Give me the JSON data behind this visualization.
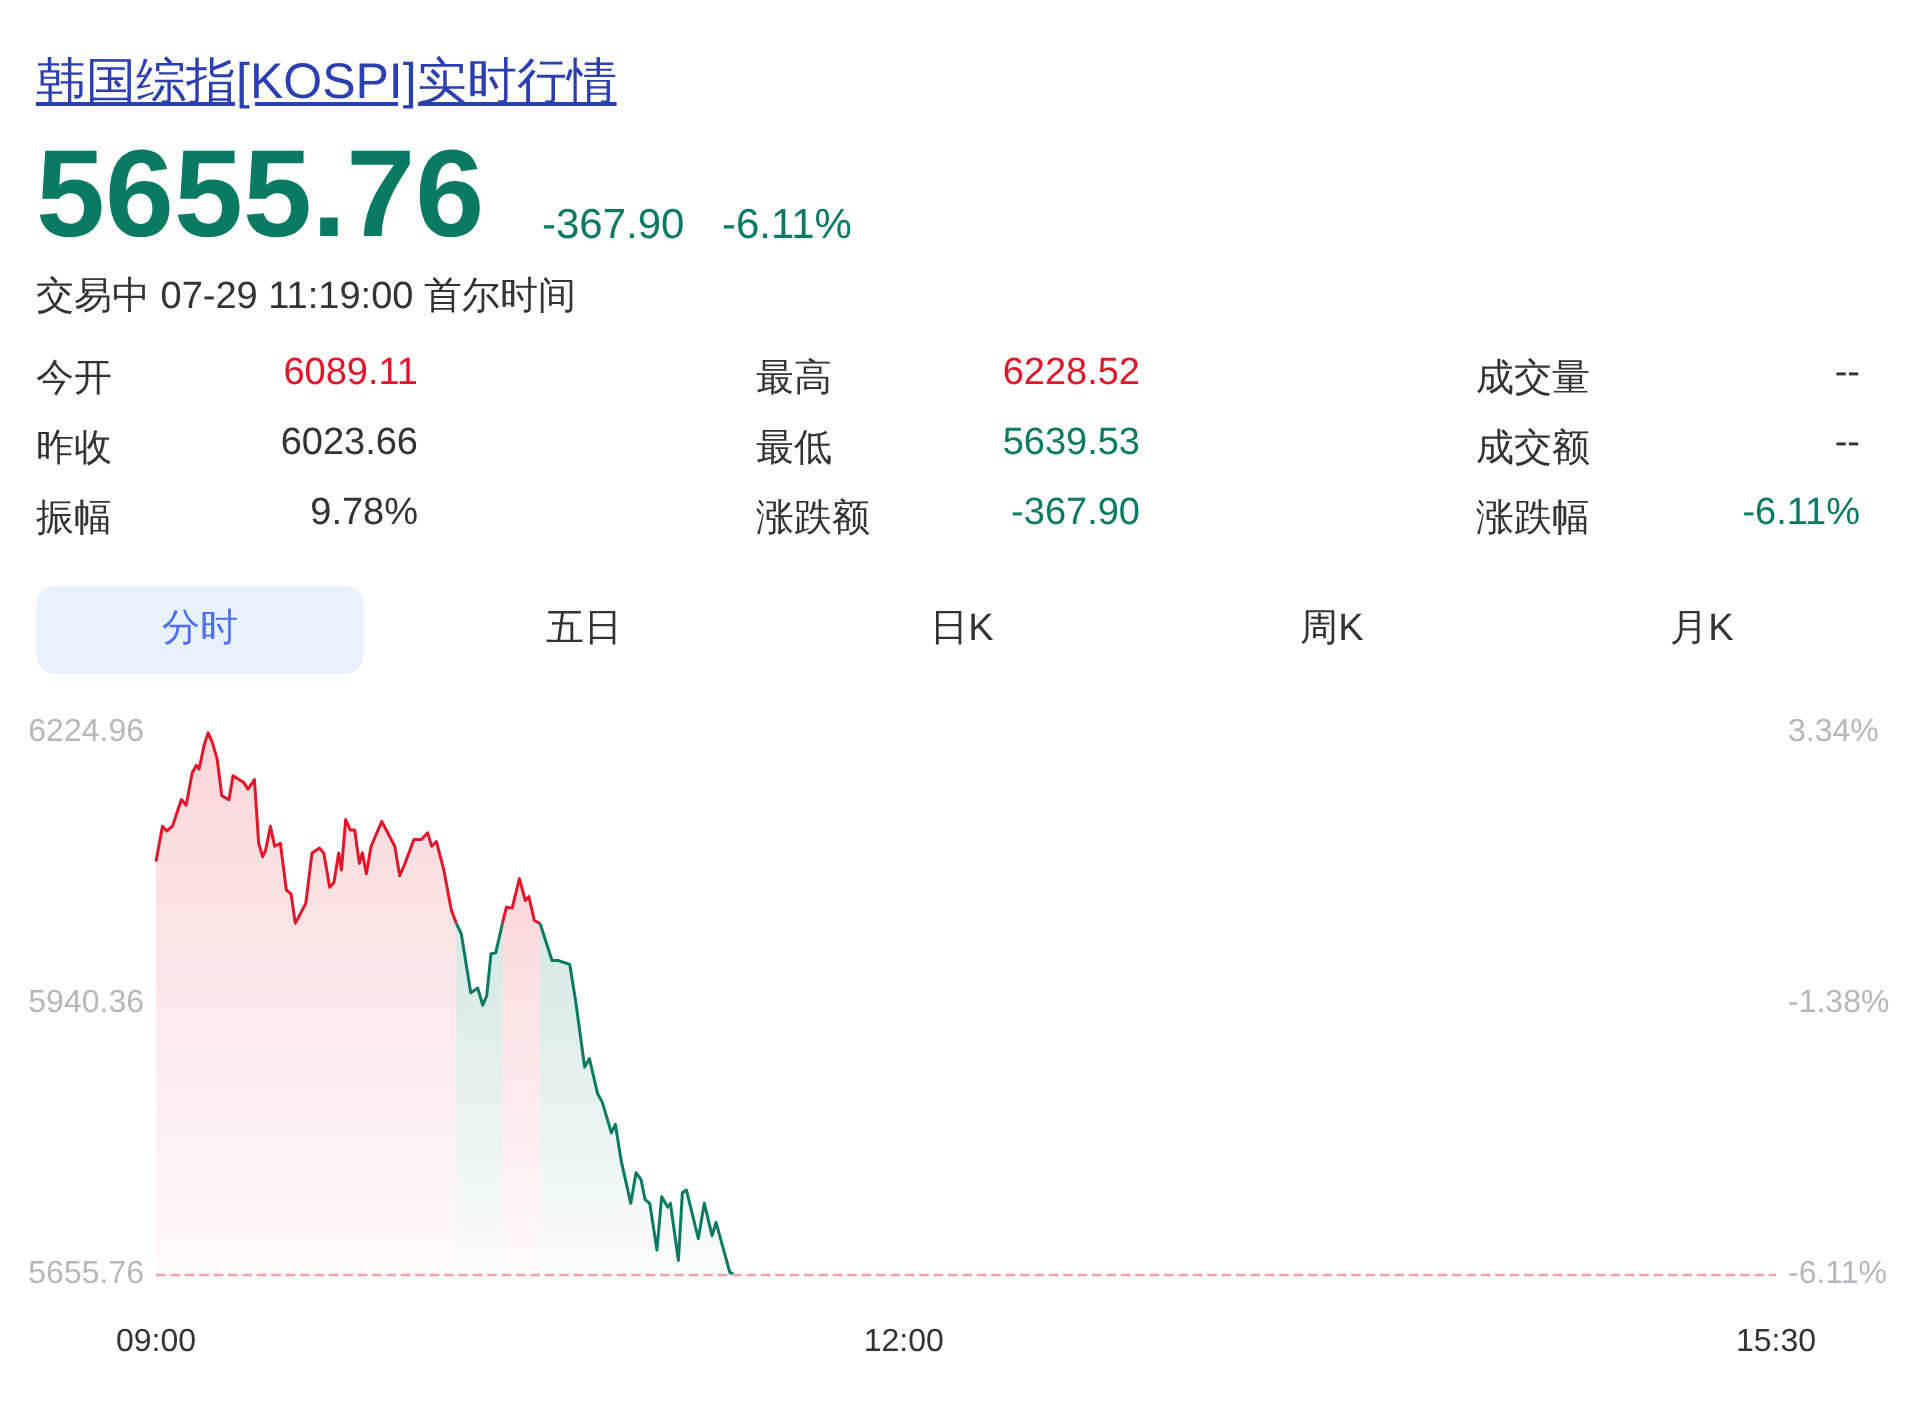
{
  "chart_data": [
    {
      "type": "other",
      "title": "韩国综指[KOSPI]实时行情",
      "annotations": [
        "5655.76",
        "-367.90",
        "-6.11%",
        "交易中 07-29 11:19:00 首尔时间",
        "今开",
        "6089.11",
        "最高",
        "6228.52",
        "成交量",
        "--",
        "昨收",
        "6023.66",
        "最低",
        "5639.53",
        "成交额",
        "--",
        "振幅",
        "9.78%",
        "涨跌额",
        "-367.90",
        "涨跌幅",
        "-6.11%",
        "分时",
        "五日",
        "日K",
        "周K",
        "月K"
      ]
    },
    {
      "type": "area",
      "grid": false,
      "marker": "none",
      "line_style": "solid",
      "xlim": [
        9,
        15.5
      ],
      "xticks": [
        {
          "value": 9,
          "label": "09:00"
        },
        {
          "value": 12,
          "label": "12:00"
        },
        {
          "value": 15.5,
          "label": "15:30"
        }
      ],
      "ylim": [
        5655.76,
        6224.96
      ],
      "yticks": [
        6224.96,
        5940.36,
        5655.76
      ],
      "y2lim": [
        -6.11,
        3.34
      ],
      "y2ticks": [
        {
          "value": 3.34,
          "label": "3.34%"
        },
        {
          "value": -1.38,
          "label": "-1.38%"
        },
        {
          "value": -6.11,
          "label": "-6.11%"
        }
      ],
      "ref_lines": [
        {
          "axis": "y",
          "value": 5655.76,
          "color": "#f2a3a3",
          "line_style": "dashed"
        }
      ],
      "series": [
        {
          "color": "#e1162b",
          "x": [
            9.0,
            9.026,
            9.043,
            9.066,
            9.102,
            9.121,
            9.145,
            9.162,
            9.173,
            9.193,
            9.209,
            9.226,
            9.245,
            9.264,
            9.293,
            9.309,
            9.352,
            9.369,
            9.395,
            9.412,
            9.428,
            9.44,
            9.459,
            9.476,
            9.499,
            9.523,
            9.542,
            9.559,
            9.601,
            9.626,
            9.656,
            9.673,
            9.697,
            9.714,
            9.733,
            9.744,
            9.761,
            9.78,
            9.797,
            9.816,
            9.828,
            9.844,
            9.863,
            9.906,
            9.958,
            9.978,
            9.999,
            10.035,
            10.065,
            10.09,
            10.106,
            10.125,
            10.154,
            10.185,
            10.205
          ],
          "values": [
            6089,
            6126,
            6121,
            6126,
            6154,
            6148,
            6182,
            6190,
            6186,
            6211,
            6224,
            6214,
            6197,
            6158,
            6154,
            6179,
            6172,
            6165,
            6175,
            6108,
            6094,
            6101,
            6126,
            6105,
            6108,
            6059,
            6055,
            6024,
            6045,
            6098,
            6103,
            6098,
            6062,
            6067,
            6098,
            6080,
            6133,
            6122,
            6122,
            6087,
            6098,
            6076,
            6105,
            6131,
            6105,
            6074,
            6087,
            6112,
            6112,
            6119,
            6105,
            6110,
            6081,
            6038,
            6024
          ]
        },
        {
          "color": "#0a7a62",
          "x": [
            10.205,
            10.225,
            10.263,
            10.291,
            10.311,
            10.327,
            10.344,
            10.363,
            10.39
          ],
          "values": [
            6024,
            6013,
            5951,
            5956,
            5938,
            5948,
            5992,
            5993,
            6024
          ]
        },
        {
          "color": "#e1162b",
          "x": [
            10.39,
            10.406,
            10.429,
            10.458,
            10.482,
            10.496,
            10.518,
            10.541
          ],
          "values": [
            6024,
            6041,
            6040,
            6071,
            6048,
            6052,
            6027,
            6024
          ]
        },
        {
          "color": "#0a7a62",
          "x": [
            10.541,
            10.589,
            10.613,
            10.66,
            10.684,
            10.72,
            10.739,
            10.772,
            10.791,
            10.827,
            10.843,
            10.867,
            10.905,
            10.926,
            10.946,
            10.962,
            10.981,
            11.01,
            11.029,
            11.053,
            11.064,
            11.096,
            11.112,
            11.128,
            11.176,
            11.2,
            11.231,
            11.247,
            11.303,
            11.317
          ],
          "values": [
            6024,
            5985,
            5985,
            5981,
            5942,
            5873,
            5882,
            5845,
            5836,
            5804,
            5813,
            5774,
            5730,
            5762,
            5755,
            5734,
            5730,
            5681,
            5737,
            5726,
            5730,
            5670,
            5741,
            5744,
            5693,
            5730,
            5696,
            5710,
            5657,
            5656
          ]
        }
      ]
    }
  ]
}
